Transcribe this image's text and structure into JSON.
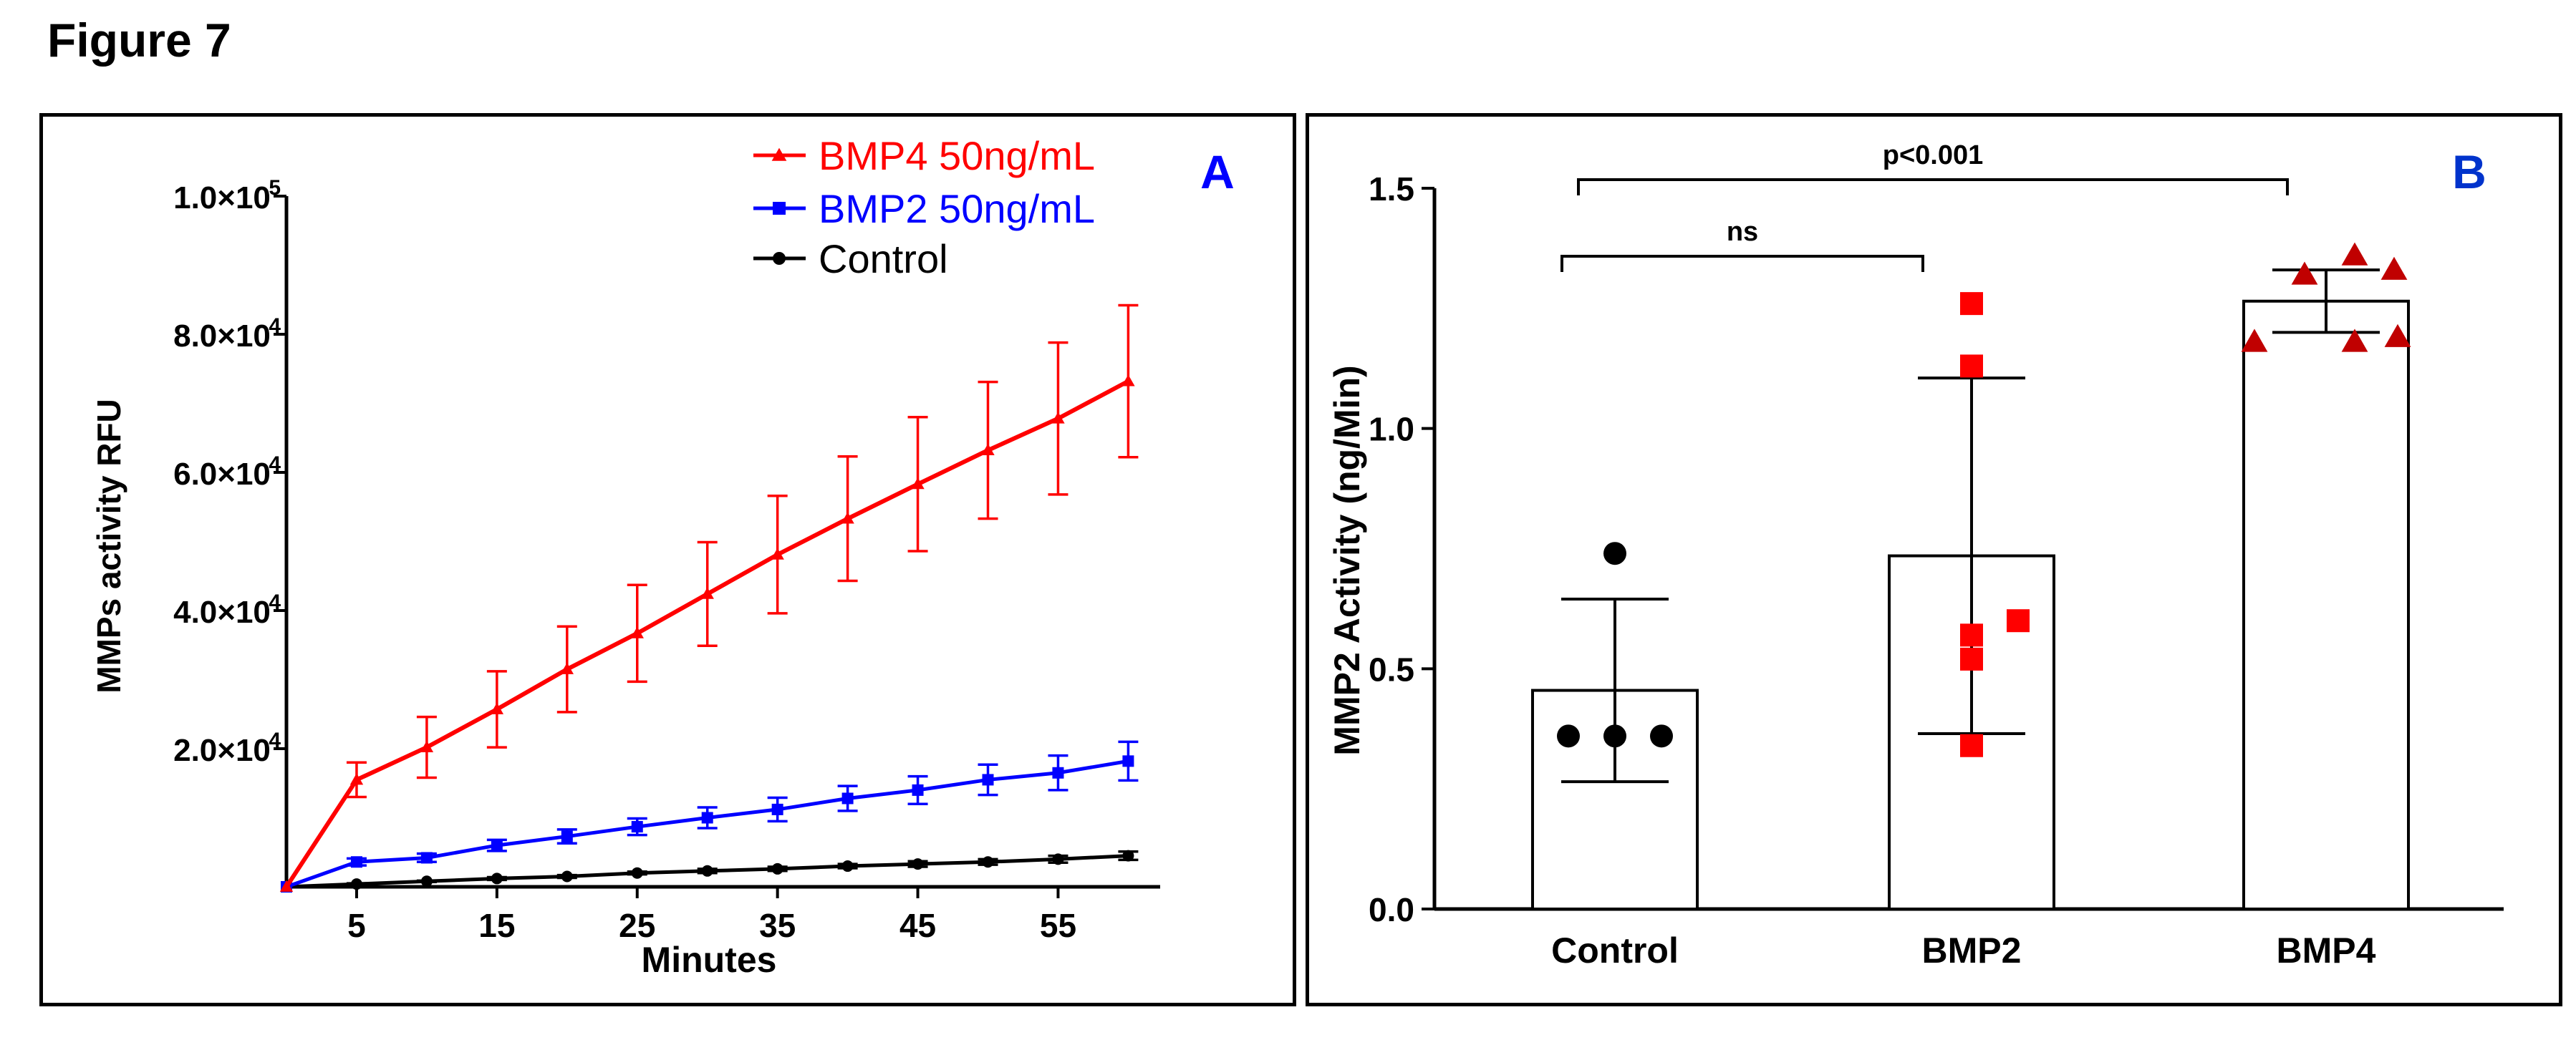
{
  "figure_title": "Figure 7",
  "colors": {
    "bmp4": "#ff0000",
    "bmp2": "#0000ff",
    "control": "#000000",
    "panel_b_label": "#0033cc",
    "bmp4_marker": "#c00000",
    "bmp2_marker": "#ff0000"
  },
  "chart_data": [
    {
      "panel": "A",
      "type": "line",
      "title": "",
      "xlabel": "Minutes",
      "ylabel": "MMPs activity RFU",
      "xlim": [
        0,
        61
      ],
      "ylim": [
        0,
        100000
      ],
      "xticks": [
        5,
        15,
        25,
        35,
        45,
        55
      ],
      "xtick_labels": [
        "5",
        "15",
        "25",
        "35",
        "45",
        "55"
      ],
      "ytick_mantissas": [
        "2.0×10",
        "4.0×10",
        "6.0×10",
        "8.0×10",
        "1.0×10"
      ],
      "ytick_exponents": [
        "4",
        "4",
        "4",
        "4",
        "5"
      ],
      "yticks": [
        20000,
        40000,
        60000,
        80000,
        100000
      ],
      "legend_position": "top-right",
      "x": [
        0,
        5,
        10,
        15,
        20,
        25,
        30,
        35,
        40,
        45,
        50,
        55,
        60
      ],
      "series": [
        {
          "name": "BMP4 50ng/mL",
          "key": "bmp4",
          "marker": "triangle",
          "values": [
            0,
            15500,
            20200,
            25700,
            31500,
            36700,
            42400,
            48100,
            53300,
            58300,
            63200,
            67800,
            73200
          ],
          "errors": [
            0,
            2500,
            4400,
            5500,
            6200,
            7000,
            7500,
            8500,
            9000,
            9700,
            9900,
            11000,
            11000
          ]
        },
        {
          "name": "BMP2 50ng/mL",
          "key": "bmp2",
          "marker": "square",
          "values": [
            0,
            3600,
            4200,
            6000,
            7300,
            8700,
            10000,
            11200,
            12800,
            14000,
            15500,
            16500,
            18200
          ],
          "errors": [
            0,
            500,
            600,
            800,
            1000,
            1200,
            1500,
            1700,
            1800,
            2000,
            2200,
            2500,
            2800
          ]
        },
        {
          "name": "Control",
          "key": "control",
          "marker": "circle",
          "values": [
            0,
            400,
            800,
            1200,
            1500,
            2000,
            2300,
            2600,
            3000,
            3300,
            3600,
            4000,
            4500
          ],
          "errors": [
            0,
            100,
            100,
            200,
            200,
            200,
            300,
            300,
            300,
            400,
            400,
            500,
            600
          ]
        }
      ]
    },
    {
      "panel": "B",
      "type": "bar",
      "title": "",
      "xlabel": "",
      "ylabel": "MMP2 Activity (ng/Min)",
      "ylim": [
        0,
        1.5
      ],
      "yticks": [
        0.0,
        0.5,
        1.0,
        1.5
      ],
      "ytick_labels": [
        "0.0",
        "0.5",
        "1.0",
        "1.5"
      ],
      "categories": [
        "Control",
        "BMP2",
        "BMP4"
      ],
      "values": [
        0.455,
        0.735,
        1.265
      ],
      "sd": [
        0.19,
        0.37,
        0.065
      ],
      "points": [
        [
          0.74,
          0.36,
          0.36,
          0.36
        ],
        [
          1.26,
          1.13,
          0.6,
          0.57,
          0.52,
          0.34
        ],
        [
          1.36,
          1.32,
          1.33,
          1.18,
          1.18,
          1.19
        ]
      ],
      "point_markers": [
        "circle",
        "square",
        "triangle"
      ],
      "comparisons": [
        {
          "from": "Control",
          "to": "BMP2",
          "label": "ns"
        },
        {
          "from": "Control",
          "to": "BMP4",
          "label": "p<0.001"
        }
      ]
    }
  ]
}
